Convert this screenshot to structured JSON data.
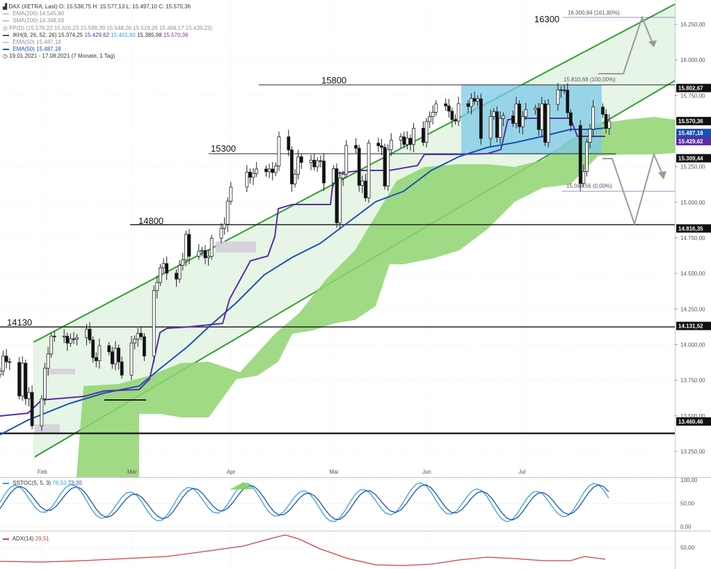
{
  "header": {
    "title": "DAX (XETRA, Last)",
    "ohlc": "O: 15.538,75  H: 15.577,13  L: 15.497,10  C: 15.570,36",
    "period": "19.01.2021 - 17.08.2021",
    "period_note": "(7 Monate, 1 Tag)"
  },
  "indicators": [
    {
      "label": "EMA(200)",
      "value": "14.545,90",
      "color": "#e8865a",
      "faint": true
    },
    {
      "label": "SMA(200)",
      "value": "14.348,59",
      "color": "#e070c0",
      "faint": true
    },
    {
      "label": "PP(D)",
      "value": "(15.576,22 15.626,23 15.599,39 15.548,26 15.519,26 15.468,17 15.439,23)",
      "color": "#999999",
      "faint": true
    },
    {
      "label": "IKH(9, 26, 52, 26)",
      "value": "15.374,25",
      "value2": "15.429,62",
      "value3": "15.401,93",
      "value4": "15.385,98",
      "value5": "15.570,36",
      "color": "#555555",
      "faint": false
    },
    {
      "label": "EMA(50)",
      "value": "15.487,18",
      "color": "#aaaaaa",
      "faint": true
    },
    {
      "label": "EMA(50)",
      "value": "15.487,18",
      "color": "#1a4fb5",
      "faint": false
    }
  ],
  "annotations": {
    "level_16300": "16300",
    "level_15800": "15800",
    "level_15300": "15300",
    "level_14800": "14800",
    "level_14130": "14130",
    "fib_161": "16.300,84 (161,80%)",
    "fib_100": "15.810,68 (100,00%)",
    "fib_0": "15.048,56 (0,00%)"
  },
  "price_labels": [
    {
      "text": "15.802,67",
      "value": 15802.67,
      "bg": "#111111",
      "fg": "#ffffff"
    },
    {
      "text": "15.570,36",
      "value": 15570.36,
      "bg": "#111111",
      "fg": "#ffffff"
    },
    {
      "text": "15.487,18",
      "value": 15487.18,
      "bg": "#1a4fb5",
      "fg": "#ffffff"
    },
    {
      "text": "15.429,62",
      "value": 15429.62,
      "bg": "#5a2ca8",
      "fg": "#ffffff"
    },
    {
      "text": "15.309,44",
      "value": 15309.44,
      "bg": "#111111",
      "fg": "#ffffff"
    },
    {
      "text": "14.816,35",
      "value": 14816.35,
      "bg": "#111111",
      "fg": "#ffffff"
    },
    {
      "text": "14.131,52",
      "value": 14131.52,
      "bg": "#111111",
      "fg": "#ffffff"
    },
    {
      "text": "13.460,46",
      "value": 13460.46,
      "bg": "#111111",
      "fg": "#ffffff"
    }
  ],
  "sstoc": {
    "label": "SSTOC(5, 5, 3)",
    "value1": "76,53",
    "value2": "73,20",
    "ticks": [
      "100,00",
      "50,00",
      "0,00"
    ]
  },
  "adx": {
    "label": "ADX(14)",
    "value": "29,51",
    "ticks": [
      "50,00"
    ]
  },
  "colors": {
    "candle_up": "#ffffff",
    "candle_down": "#111111",
    "channel": "#2e9e2e",
    "channel_fill": "#e3f4e3",
    "cloud": "#8fd470",
    "ema50": "#1a4fb5",
    "kijun": "#5a2ca8",
    "box": "#7cc8e8",
    "arrow": "#9a9a9a",
    "stoch_fast": "#3aa0d8",
    "stoch_slow": "#1a4fb5",
    "adx_line": "#d04040"
  },
  "chart_data": {
    "type": "line",
    "title": "DAX (XETRA, Last)",
    "xlabel": "",
    "ylabel": "",
    "ylim": [
      13160,
      16450
    ],
    "grid": true,
    "x_month_labels": [
      {
        "label": "Feb",
        "date": "2021-02-01"
      },
      {
        "label": "Mär",
        "date": "2021-03-01"
      },
      {
        "label": "Apr",
        "date": "2021-04-01"
      },
      {
        "label": "Mai",
        "date": "2021-05-03"
      },
      {
        "label": "Jun",
        "date": "2021-06-01"
      },
      {
        "label": "Jul",
        "date": "2021-07-01"
      }
    ],
    "y_ticks": [
      {
        "label": "16.250,00",
        "value": 16250
      },
      {
        "label": "16.000,00",
        "value": 16000
      },
      {
        "label": "15.750,00",
        "value": 15750
      },
      {
        "label": "15.250,00",
        "value": 15250
      },
      {
        "label": "15.000,00",
        "value": 15000
      },
      {
        "label": "14.750,00",
        "value": 14750
      },
      {
        "label": "14.500,00",
        "value": 14500
      },
      {
        "label": "14.250,00",
        "value": 14250
      },
      {
        "label": "14.000,00",
        "value": 14000
      },
      {
        "label": "13.750,00",
        "value": 13750
      },
      {
        "label": "13.500,00",
        "value": 13500
      },
      {
        "label": "13.250,00",
        "value": 13250
      }
    ],
    "close_series": [
      [
        "2021-01-19",
        13815
      ],
      [
        "2021-01-20",
        13920
      ],
      [
        "2021-01-21",
        13880
      ],
      [
        "2021-01-22",
        13875
      ],
      [
        "2021-01-25",
        13640
      ],
      [
        "2021-01-26",
        13870
      ],
      [
        "2021-01-27",
        13620
      ],
      [
        "2021-01-28",
        13665
      ],
      [
        "2021-01-29",
        13430
      ],
      [
        "2021-02-01",
        13620
      ],
      [
        "2021-02-02",
        13835
      ],
      [
        "2021-02-03",
        13935
      ],
      [
        "2021-02-04",
        14060
      ],
      [
        "2021-02-05",
        14056
      ],
      [
        "2021-02-08",
        14060
      ],
      [
        "2021-02-09",
        14011
      ],
      [
        "2021-02-10",
        14041
      ],
      [
        "2021-02-11",
        14040
      ],
      [
        "2021-02-12",
        14050
      ],
      [
        "2021-02-15",
        14109
      ],
      [
        "2021-02-16",
        14033
      ],
      [
        "2021-02-17",
        13909
      ],
      [
        "2021-02-18",
        13887
      ],
      [
        "2021-02-19",
        13993
      ],
      [
        "2021-02-22",
        13950
      ],
      [
        "2021-02-23",
        13865
      ],
      [
        "2021-02-24",
        13976
      ],
      [
        "2021-02-25",
        13879
      ],
      [
        "2021-02-26",
        13786
      ],
      [
        "2021-03-01",
        14012
      ],
      [
        "2021-03-02",
        14040
      ],
      [
        "2021-03-03",
        14080
      ],
      [
        "2021-03-04",
        14056
      ],
      [
        "2021-03-05",
        13920
      ],
      [
        "2021-03-08",
        14380
      ],
      [
        "2021-03-09",
        14437
      ],
      [
        "2021-03-10",
        14540
      ],
      [
        "2021-03-11",
        14570
      ],
      [
        "2021-03-12",
        14502
      ],
      [
        "2021-03-15",
        14461
      ],
      [
        "2021-03-16",
        14557
      ],
      [
        "2021-03-17",
        14596
      ],
      [
        "2021-03-18",
        14775
      ],
      [
        "2021-03-19",
        14621
      ],
      [
        "2021-03-22",
        14657
      ],
      [
        "2021-03-23",
        14662
      ],
      [
        "2021-03-24",
        14610
      ],
      [
        "2021-03-25",
        14621
      ],
      [
        "2021-03-26",
        14748
      ],
      [
        "2021-03-29",
        14817
      ],
      [
        "2021-03-30",
        14846
      ],
      [
        "2021-03-31",
        15008
      ],
      [
        "2021-04-01",
        15107
      ],
      [
        "2021-04-06",
        15212
      ],
      [
        "2021-04-07",
        15176
      ],
      [
        "2021-04-08",
        15203
      ],
      [
        "2021-04-09",
        15234
      ],
      [
        "2021-04-12",
        15215
      ],
      [
        "2021-04-13",
        15234
      ],
      [
        "2021-04-14",
        15209
      ],
      [
        "2021-04-15",
        15255
      ],
      [
        "2021-04-16",
        15460
      ],
      [
        "2021-04-19",
        15368
      ],
      [
        "2021-04-20",
        15129
      ],
      [
        "2021-04-21",
        15196
      ],
      [
        "2021-04-22",
        15320
      ],
      [
        "2021-04-23",
        15280
      ],
      [
        "2021-04-26",
        15296
      ],
      [
        "2021-04-27",
        15249
      ],
      [
        "2021-04-28",
        15292
      ],
      [
        "2021-04-29",
        15290
      ],
      [
        "2021-04-30",
        15136
      ],
      [
        "2021-05-03",
        15236
      ],
      [
        "2021-05-04",
        14856
      ],
      [
        "2021-05-05",
        15170
      ],
      [
        "2021-05-06",
        15197
      ],
      [
        "2021-05-07",
        15400
      ],
      [
        "2021-05-10",
        15380
      ],
      [
        "2021-05-11",
        15119
      ],
      [
        "2021-05-12",
        15150
      ],
      [
        "2021-05-13",
        15031
      ],
      [
        "2021-05-14",
        15416
      ],
      [
        "2021-05-17",
        15397
      ],
      [
        "2021-05-18",
        15386
      ],
      [
        "2021-05-19",
        15114
      ],
      [
        "2021-05-20",
        15370
      ],
      [
        "2021-05-21",
        15437
      ],
      [
        "2021-05-24",
        15460
      ],
      [
        "2021-05-25",
        15406
      ],
      [
        "2021-05-26",
        15450
      ],
      [
        "2021-05-27",
        15406
      ],
      [
        "2021-05-28",
        15520
      ],
      [
        "2021-05-31",
        15421
      ],
      [
        "2021-06-01",
        15567
      ],
      [
        "2021-06-02",
        15602
      ],
      [
        "2021-06-03",
        15632
      ],
      [
        "2021-06-04",
        15692
      ],
      [
        "2021-06-07",
        15677
      ],
      [
        "2021-06-08",
        15640
      ],
      [
        "2021-06-09",
        15581
      ],
      [
        "2021-06-10",
        15571
      ],
      [
        "2021-06-11",
        15693
      ],
      [
        "2021-06-14",
        15673
      ],
      [
        "2021-06-15",
        15729
      ],
      [
        "2021-06-16",
        15710
      ],
      [
        "2021-06-17",
        15727
      ],
      [
        "2021-06-18",
        15448
      ],
      [
        "2021-06-21",
        15603
      ],
      [
        "2021-06-22",
        15636
      ],
      [
        "2021-06-23",
        15456
      ],
      [
        "2021-06-24",
        15589
      ],
      [
        "2021-06-25",
        15607
      ],
      [
        "2021-06-28",
        15554
      ],
      [
        "2021-06-29",
        15691
      ],
      [
        "2021-06-30",
        15531
      ],
      [
        "2021-07-01",
        15603
      ],
      [
        "2021-07-02",
        15650
      ],
      [
        "2021-07-05",
        15661
      ],
      [
        "2021-07-06",
        15511
      ],
      [
        "2021-07-07",
        15692
      ],
      [
        "2021-07-08",
        15421
      ],
      [
        "2021-07-09",
        15688
      ],
      [
        "2021-07-12",
        15790
      ],
      [
        "2021-07-13",
        15789
      ],
      [
        "2021-07-14",
        15788
      ],
      [
        "2021-07-15",
        15629
      ],
      [
        "2021-07-16",
        15540
      ],
      [
        "2021-07-19",
        15133
      ],
      [
        "2021-07-20",
        15216
      ],
      [
        "2021-07-21",
        15422
      ],
      [
        "2021-07-22",
        15514
      ],
      [
        "2021-07-23",
        15669
      ],
      [
        "2021-07-26",
        15618
      ],
      [
        "2021-07-27",
        15519
      ],
      [
        "2021-07-28",
        15570
      ]
    ]
  }
}
